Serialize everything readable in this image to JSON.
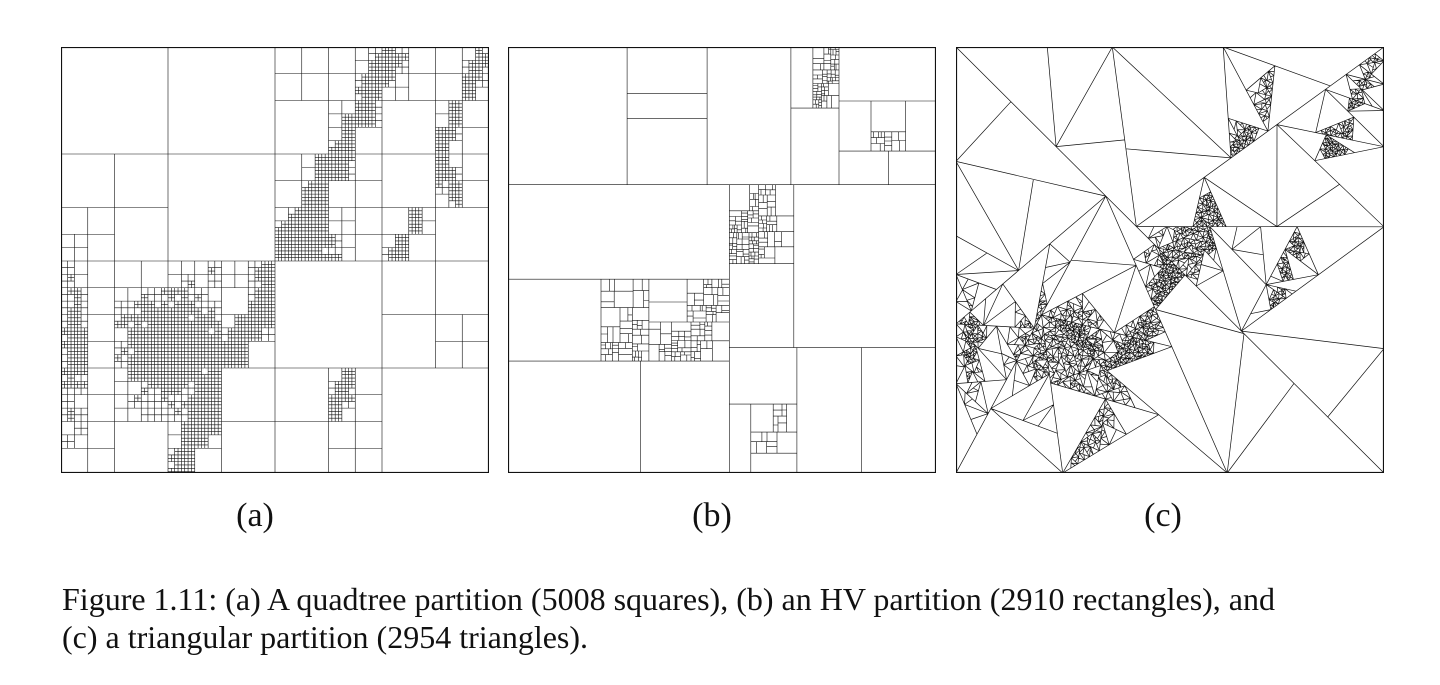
{
  "figure": {
    "panels": [
      {
        "label": "(a)",
        "kind": "quadtree-partition-icon"
      },
      {
        "label": "(b)",
        "kind": "hv-partition-icon"
      },
      {
        "label": "(c)",
        "kind": "triangular-partition-icon"
      }
    ],
    "caption_line1": "Figure 1.11: (a) A quadtree partition (5008 squares), (b) an HV partition (2910 rectangles), and",
    "caption_line2": "(c) a triangular partition (2954 triangles)."
  }
}
